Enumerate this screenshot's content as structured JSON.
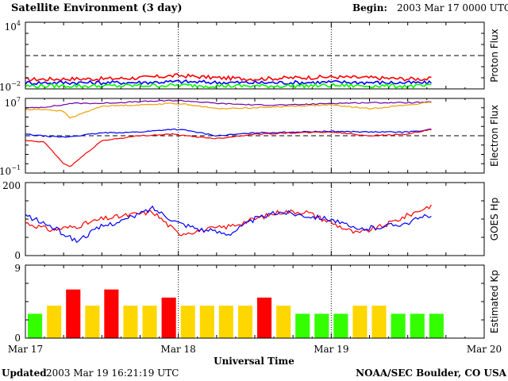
{
  "header": {
    "title": "Satellite Environment (3 day)",
    "begin_label": "Begin:",
    "begin_value": "2003 Mar 17 0000 UTC"
  },
  "footer": {
    "updated_label": "Updated",
    "updated_value": "2003 Mar 19 16:21:19 UTC",
    "credit": "NOAA/SEC Boulder, CO USA"
  },
  "chart_data": [
    {
      "type": "line",
      "ylabel": "Proton Flux",
      "y_scale": "log",
      "ylim": [
        0.01,
        10000
      ],
      "ytick_labels": [
        {
          "base": "10",
          "exp": "4"
        },
        {
          "base": "10",
          "exp": "−2"
        }
      ],
      "reference_line": 10,
      "grid": false,
      "x": [
        "Mar 17 00:00",
        "Mar 17 06:00",
        "Mar 17 12:00",
        "Mar 17 18:00",
        "Mar 18 00:00",
        "Mar 18 06:00",
        "Mar 18 12:00",
        "Mar 18 18:00",
        "Mar 19 00:00",
        "Mar 19 06:00",
        "Mar 19 12:00",
        "Mar 19 16:00"
      ],
      "series": [
        {
          "color": "#ff0000",
          "values": [
            0.07,
            0.08,
            0.08,
            0.1,
            0.16,
            0.1,
            0.08,
            0.1,
            0.12,
            0.1,
            0.08,
            0.08
          ]
        },
        {
          "color": "#0000ff",
          "values": [
            0.035,
            0.037,
            0.036,
            0.038,
            0.045,
            0.038,
            0.036,
            0.037,
            0.04,
            0.038,
            0.035,
            0.035
          ]
        },
        {
          "color": "#00ff00",
          "values": [
            0.018,
            0.019,
            0.018,
            0.02,
            0.021,
            0.019,
            0.018,
            0.019,
            0.02,
            0.019,
            0.018,
            0.018
          ]
        }
      ]
    },
    {
      "type": "line",
      "ylabel": "Electron Flux",
      "y_scale": "log",
      "ylim": [
        0.1,
        10000000
      ],
      "ytick_labels": [
        {
          "base": "10",
          "exp": "7"
        },
        {
          "base": "10",
          "exp": "−1"
        }
      ],
      "reference_line": 1000,
      "grid": false,
      "x": [
        "Mar 17 00:00",
        "Mar 17 03:00",
        "Mar 17 06:00",
        "Mar 17 07:00",
        "Mar 17 12:00",
        "Mar 17 18:00",
        "Mar 17 23:00",
        "Mar 18 01:00",
        "Mar 18 06:00",
        "Mar 18 12:00",
        "Mar 18 18:00",
        "Mar 19 00:00",
        "Mar 19 06:00",
        "Mar 19 12:00",
        "Mar 19 16:00"
      ],
      "series": [
        {
          "color": "#6a00a8",
          "values": [
            900000,
            1200000,
            2000000,
            3000000,
            3000000,
            4500000,
            6000000,
            5500000,
            3000000,
            2000000,
            2000000,
            3000000,
            3500000,
            3500000,
            4000000
          ]
        },
        {
          "color": "#f0a000",
          "values": [
            600000,
            700000,
            400000,
            80000,
            1500000,
            2000000,
            3000000,
            2500000,
            800000,
            1000000,
            1500000,
            2000000,
            800000,
            2000000,
            4000000
          ]
        },
        {
          "color": "#0000ff",
          "values": [
            1500,
            900,
            700,
            800,
            2000,
            2500,
            5000,
            4000,
            1000,
            2000,
            2500,
            3000,
            2500,
            2500,
            5000
          ]
        },
        {
          "color": "#ff0000",
          "values": [
            300,
            200,
            1,
            0.5,
            300,
            1000,
            1500,
            1000,
            500,
            1500,
            2000,
            2500,
            1000,
            1500,
            5000
          ]
        }
      ]
    },
    {
      "type": "line",
      "ylabel": "GOES Hp",
      "ylim": [
        0,
        200
      ],
      "yticks": [
        0,
        200
      ],
      "grid": false,
      "x": [
        "Mar 17 00:00",
        "Mar 17 04:00",
        "Mar 17 08:00",
        "Mar 17 12:00",
        "Mar 17 16:00",
        "Mar 17 20:00",
        "Mar 18 00:00",
        "Mar 18 04:00",
        "Mar 18 08:00",
        "Mar 18 12:00",
        "Mar 18 16:00",
        "Mar 18 20:00",
        "Mar 19 00:00",
        "Mar 19 04:00",
        "Mar 19 08:00",
        "Mar 19 12:00",
        "Mar 19 16:00"
      ],
      "series": [
        {
          "color": "#ff0000",
          "values": [
            90,
            70,
            80,
            100,
            110,
            120,
            60,
            70,
            80,
            100,
            120,
            120,
            90,
            60,
            80,
            110,
            140
          ]
        },
        {
          "color": "#0000ff",
          "values": [
            110,
            80,
            40,
            80,
            100,
            130,
            90,
            70,
            60,
            100,
            120,
            110,
            100,
            70,
            80,
            90,
            115
          ]
        }
      ]
    },
    {
      "type": "bar",
      "ylabel": "Estimated Kp",
      "ylim": [
        0,
        9
      ],
      "yticks": [
        0,
        9
      ],
      "grid": false,
      "bar_interval_hours": 3,
      "categories": [
        "Mar 17 00-03",
        "Mar 17 03-06",
        "Mar 17 06-09",
        "Mar 17 09-12",
        "Mar 17 12-15",
        "Mar 17 15-18",
        "Mar 17 18-21",
        "Mar 17 21-24",
        "Mar 18 00-03",
        "Mar 18 03-06",
        "Mar 18 06-09",
        "Mar 18 09-12",
        "Mar 18 12-15",
        "Mar 18 15-18",
        "Mar 18 18-21",
        "Mar 18 21-24",
        "Mar 19 00-03",
        "Mar 19 03-06",
        "Mar 19 06-09",
        "Mar 19 09-12",
        "Mar 19 12-15",
        "Mar 19 15-18"
      ],
      "values": [
        3,
        4,
        6,
        4,
        6,
        4,
        4,
        5,
        4,
        4,
        4,
        4,
        5,
        4,
        3,
        3,
        3,
        4,
        4,
        3,
        3,
        3
      ],
      "colors": {
        "low": "#33ff00",
        "moderate": "#ffd700",
        "storm": "#ff0000"
      },
      "thresholds": {
        "moderate": 4,
        "storm": 5
      }
    }
  ],
  "x_axis": {
    "label": "Universal Time",
    "tick_labels": [
      "Mar 17",
      "Mar 18",
      "Mar 19",
      "Mar 20"
    ],
    "xlim": [
      "Mar 17 00:00",
      "Mar 20 00:00"
    ]
  }
}
